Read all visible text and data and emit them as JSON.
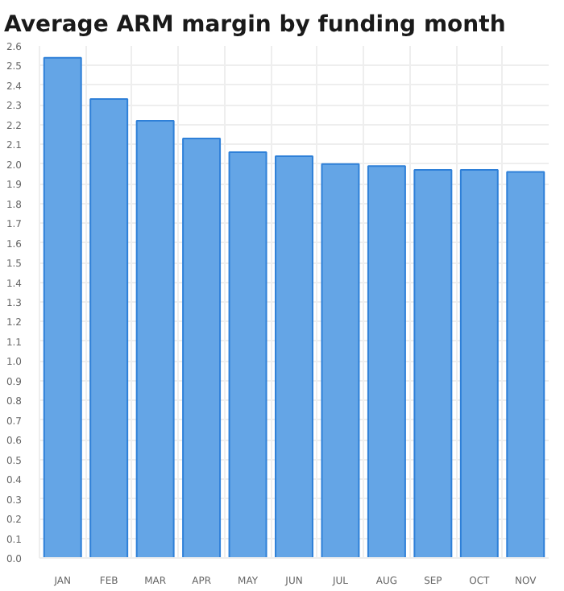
{
  "chart_data": {
    "type": "bar",
    "title": "Average ARM margin by funding month",
    "categories": [
      "JAN",
      "FEB",
      "MAR",
      "APR",
      "MAY",
      "JUN",
      "JUL",
      "AUG",
      "SEP",
      "OCT",
      "NOV"
    ],
    "values": [
      2.54,
      2.33,
      2.22,
      2.13,
      2.06,
      2.04,
      2.0,
      1.99,
      1.97,
      1.97,
      1.96
    ],
    "color": "#64a5e6",
    "ylim": [
      0,
      2.6
    ],
    "yticks": [
      {
        "value": 0,
        "label": "0.0"
      },
      0.1,
      0.2,
      0.3,
      0.4,
      0.5,
      0.6,
      0.7,
      0.8,
      0.9,
      {
        "value": 1,
        "label": "1.0"
      },
      1.1,
      1.2,
      1.3,
      1.4,
      1.5,
      1.6,
      1.7,
      1.8,
      1.9,
      {
        "value": 2,
        "label": "2.0"
      },
      2.1,
      2.2,
      2.3,
      2.4,
      2.5,
      2.6
    ],
    "grid": true
  }
}
